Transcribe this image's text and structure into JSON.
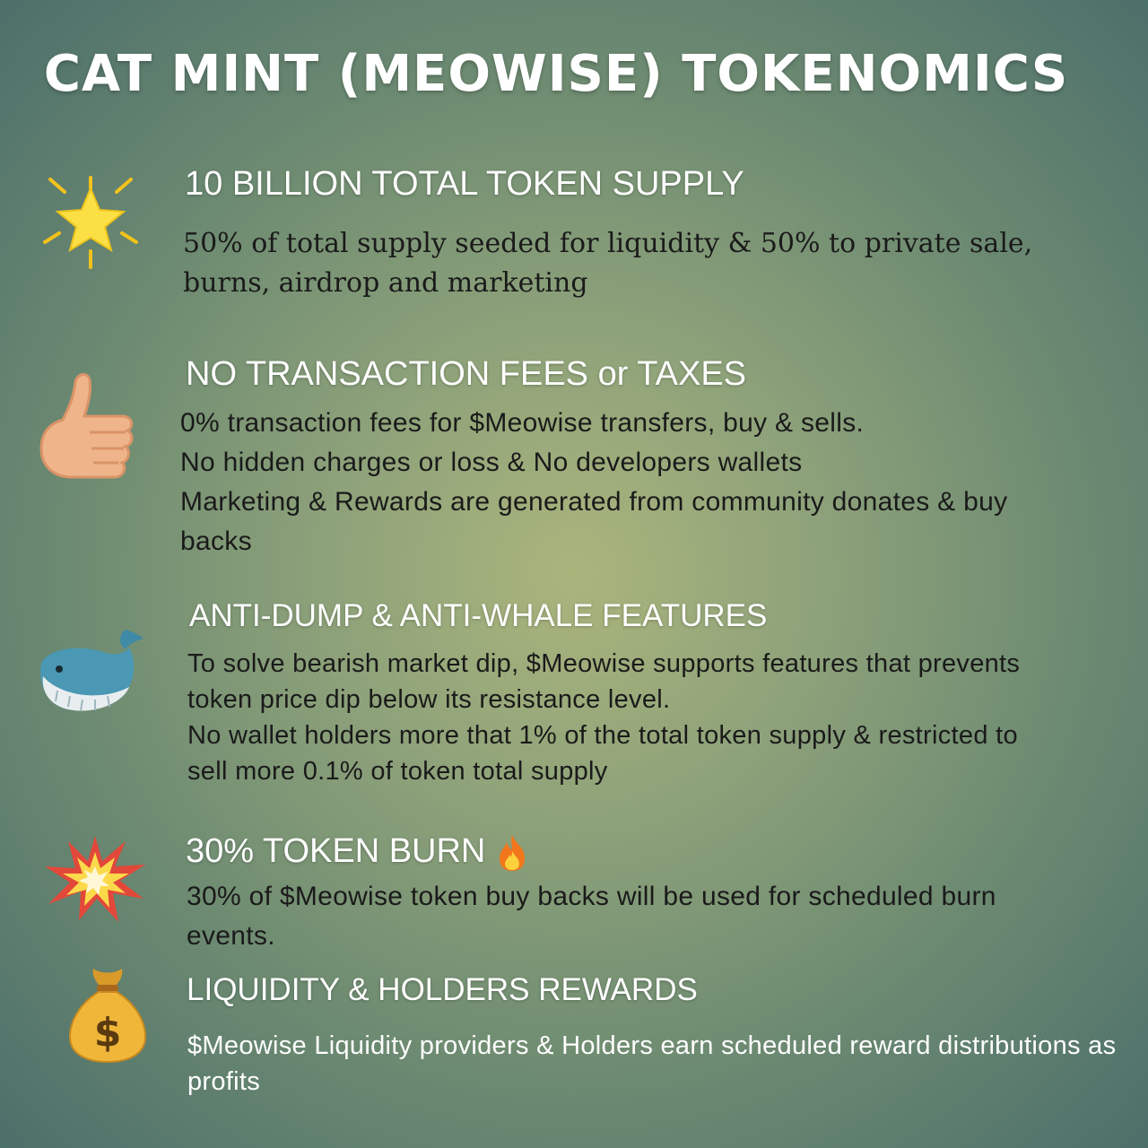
{
  "title": "CAT MINT (MEOWISE) TOKENOMICS",
  "sections": [
    {
      "icon": "star-icon",
      "heading": "10 BILLION TOTAL TOKEN SUPPLY",
      "body": "50% of total supply seeded for liquidity & 50% to private sale,\nburns, airdrop and marketing"
    },
    {
      "icon": "thumbs-up-icon",
      "heading": "NO TRANSACTION FEES or TAXES",
      "body": "0% transaction fees for $Meowise transfers, buy & sells.\nNo hidden charges or loss & No developers wallets\nMarketing & Rewards are generated from community donates & buy\nbacks"
    },
    {
      "icon": "whale-icon",
      "heading": "ANTI-DUMP & ANTI-WHALE FEATURES",
      "body": "To solve bearish market dip, $Meowise supports features that prevents\ntoken price dip below its resistance level.\nNo wallet holders more that 1% of the total token supply & restricted to\nsell more 0.1% of token total supply"
    },
    {
      "icon": "collision-icon",
      "heading": "30% TOKEN BURN",
      "heading_icon": "fire-icon",
      "body": "30% of $Meowise token buy backs will be used for scheduled burn\nevents."
    },
    {
      "icon": "money-bag-icon",
      "heading": "LIQUIDITY & HOLDERS REWARDS",
      "body": "$Meowise Liquidity providers & Holders earn scheduled reward distributions as\nprofits"
    }
  ]
}
